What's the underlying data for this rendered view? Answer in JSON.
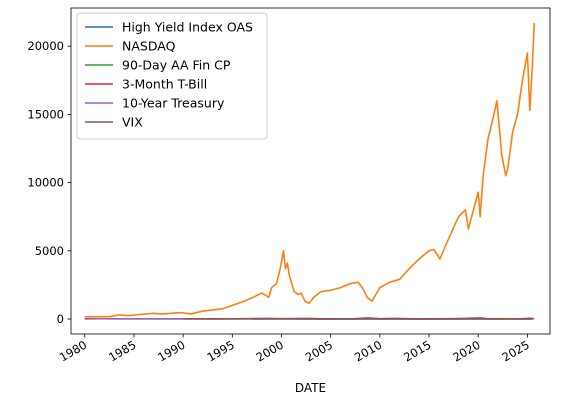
{
  "chart_data": {
    "type": "line",
    "xlabel": "DATE",
    "ylabel": "",
    "xlim": [
      1978.6,
      2027.3
    ],
    "ylim": [
      -1100,
      22800
    ],
    "x_ticks": [
      1980,
      1985,
      1990,
      1995,
      2000,
      2005,
      2010,
      2015,
      2020,
      2025
    ],
    "x_tick_labels": [
      "1980",
      "1985",
      "1990",
      "1995",
      "2000",
      "2005",
      "2010",
      "2015",
      "2020",
      "2025"
    ],
    "y_ticks": [
      0,
      5000,
      10000,
      15000,
      20000
    ],
    "y_tick_labels": [
      "0",
      "5000",
      "10000",
      "15000",
      "20000"
    ],
    "grid": false,
    "legend_position": "upper-left",
    "series": [
      {
        "name": "High Yield Index OAS",
        "color": "#1f77b4",
        "x": [
          1997.0,
          2000.0,
          2002.8,
          2005.0,
          2007.5,
          2008.9,
          2010.0,
          2015.9,
          2020.2,
          2025.5
        ],
        "values": [
          3,
          6,
          10,
          4,
          3,
          20,
          6,
          7,
          9,
          3
        ]
      },
      {
        "name": "NASDAQ",
        "color": "#ff7f0e",
        "x": [
          1980.0,
          1982.6,
          1983.5,
          1984.5,
          1985.5,
          1987.0,
          1987.8,
          1988.5,
          1989.7,
          1990.8,
          1992.0,
          1994.0,
          1995.0,
          1996.0,
          1997.0,
          1998.0,
          1998.7,
          1999.0,
          1999.5,
          1999.9,
          2000.2,
          2000.4,
          2000.6,
          2000.8,
          2001.0,
          2001.3,
          2001.7,
          2002.0,
          2002.4,
          2002.8,
          2003.3,
          2004.0,
          2005.0,
          2006.0,
          2007.0,
          2007.8,
          2008.3,
          2008.7,
          2009.2,
          2010.0,
          2011.0,
          2012.0,
          2013.0,
          2014.0,
          2015.0,
          2015.5,
          2016.1,
          2017.0,
          2018.0,
          2018.7,
          2019.0,
          2020.0,
          2020.2,
          2020.5,
          2021.0,
          2021.5,
          2021.9,
          2022.4,
          2022.8,
          2023.0,
          2023.5,
          2024.0,
          2024.5,
          2025.0,
          2025.25,
          2025.5,
          2025.7
        ],
        "values": [
          150,
          180,
          300,
          250,
          320,
          420,
          370,
          400,
          470,
          370,
          580,
          750,
          1000,
          1250,
          1550,
          1900,
          1600,
          2300,
          2600,
          3800,
          5000,
          3700,
          4100,
          3200,
          2700,
          2000,
          1800,
          1900,
          1300,
          1150,
          1600,
          2000,
          2100,
          2300,
          2600,
          2700,
          2200,
          1600,
          1300,
          2300,
          2700,
          2900,
          3700,
          4400,
          5000,
          5100,
          4400,
          5900,
          7500,
          8000,
          6600,
          9300,
          7500,
          10500,
          13200,
          14700,
          16000,
          12000,
          10500,
          11000,
          13700,
          15000,
          17500,
          19500,
          15300,
          18500,
          21700
        ]
      },
      {
        "name": "90-Day AA Fin CP",
        "color": "#2ca02c",
        "x": [
          1997.0,
          2000.5,
          2001.9,
          2004.0,
          2006.5,
          2008.2,
          2009.0,
          2015.9,
          2019.0,
          2020.3,
          2022.0,
          2023.5,
          2025.5
        ],
        "values": [
          5.5,
          6.5,
          2.0,
          1.2,
          5.3,
          3.0,
          0.3,
          0.2,
          2.3,
          0.2,
          2.0,
          5.4,
          4.3
        ]
      },
      {
        "name": "3-Month T-Bill",
        "color": "#d62728",
        "x": [
          1980.0,
          1981.3,
          1983.0,
          1985.0,
          1989.0,
          1993.0,
          1995.0,
          2000.5,
          2003.5,
          2007.0,
          2009.0,
          2015.9,
          2019.0,
          2020.3,
          2022.0,
          2023.5,
          2025.5
        ],
        "values": [
          12.0,
          16.0,
          8.5,
          7.5,
          8.5,
          3.0,
          5.5,
          6.2,
          1.0,
          5.0,
          0.1,
          0.1,
          2.4,
          0.1,
          2.0,
          5.3,
          4.3
        ]
      },
      {
        "name": "10-Year Treasury",
        "color": "#9467bd",
        "x": [
          1980.0,
          1981.7,
          1985.0,
          1990.0,
          1995.0,
          2000.0,
          2005.0,
          2010.0,
          2012.5,
          2016.5,
          2018.8,
          2020.5,
          2022.0,
          2023.8,
          2025.5
        ],
        "values": [
          11.0,
          15.8,
          10.5,
          8.5,
          6.5,
          6.5,
          4.3,
          3.5,
          1.6,
          1.5,
          3.2,
          0.6,
          3.0,
          5.0,
          4.3
        ]
      },
      {
        "name": "VIX",
        "color": "#8c564b",
        "x": [
          1990.0,
          1992.0,
          1995.0,
          1998.7,
          2000.0,
          2002.7,
          2004.0,
          2007.0,
          2008.8,
          2010.0,
          2011.6,
          2014.0,
          2016.0,
          2018.1,
          2020.2,
          2021.0,
          2022.0,
          2024.0,
          2025.25,
          2025.7
        ],
        "values": [
          20,
          18,
          12,
          45,
          25,
          42,
          15,
          13,
          80,
          25,
          45,
          12,
          15,
          35,
          82,
          22,
          30,
          13,
          52,
          17
        ]
      }
    ]
  }
}
